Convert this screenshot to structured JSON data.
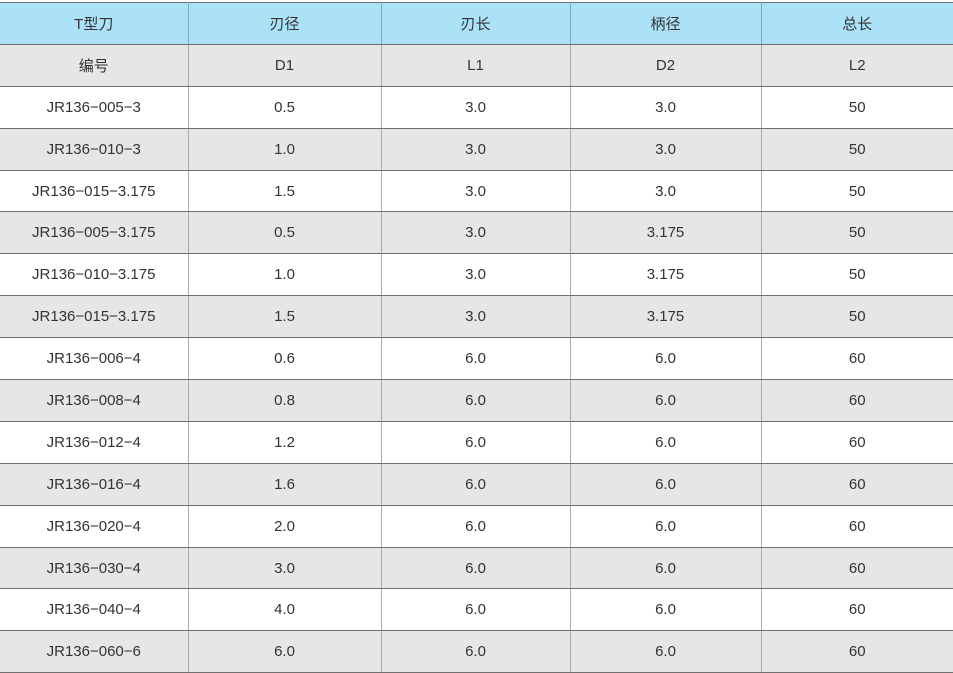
{
  "colors": {
    "header_bg": "#ace2f7",
    "subheader_bg": "#e6e6e6",
    "row_bg": "#ffffff",
    "row_alt_bg": "#e6e6e6",
    "border_horizontal": "#707070",
    "border_vertical": "#ababab",
    "text": "#333333"
  },
  "table": {
    "header_row": [
      "T型刀",
      "刃径",
      "刃长",
      "柄径",
      "总长"
    ],
    "subheader_row": [
      "编号",
      "D1",
      "L1",
      "D2",
      "L2"
    ],
    "rows": [
      [
        "JR136−005−3",
        "0.5",
        "3.0",
        "3.0",
        "50"
      ],
      [
        "JR136−010−3",
        "1.0",
        "3.0",
        "3.0",
        "50"
      ],
      [
        "JR136−015−3.175",
        "1.5",
        "3.0",
        "3.0",
        "50"
      ],
      [
        "JR136−005−3.175",
        "0.5",
        "3.0",
        "3.175",
        "50"
      ],
      [
        "JR136−010−3.175",
        "1.0",
        "3.0",
        "3.175",
        "50"
      ],
      [
        "JR136−015−3.175",
        "1.5",
        "3.0",
        "3.175",
        "50"
      ],
      [
        "JR136−006−4",
        "0.6",
        "6.0",
        "6.0",
        "60"
      ],
      [
        "JR136−008−4",
        "0.8",
        "6.0",
        "6.0",
        "60"
      ],
      [
        "JR136−012−4",
        "1.2",
        "6.0",
        "6.0",
        "60"
      ],
      [
        "JR136−016−4",
        "1.6",
        "6.0",
        "6.0",
        "60"
      ],
      [
        "JR136−020−4",
        "2.0",
        "6.0",
        "6.0",
        "60"
      ],
      [
        "JR136−030−4",
        "3.0",
        "6.0",
        "6.0",
        "60"
      ],
      [
        "JR136−040−4",
        "4.0",
        "6.0",
        "6.0",
        "60"
      ],
      [
        "JR136−060−6",
        "6.0",
        "6.0",
        "6.0",
        "60"
      ]
    ]
  }
}
